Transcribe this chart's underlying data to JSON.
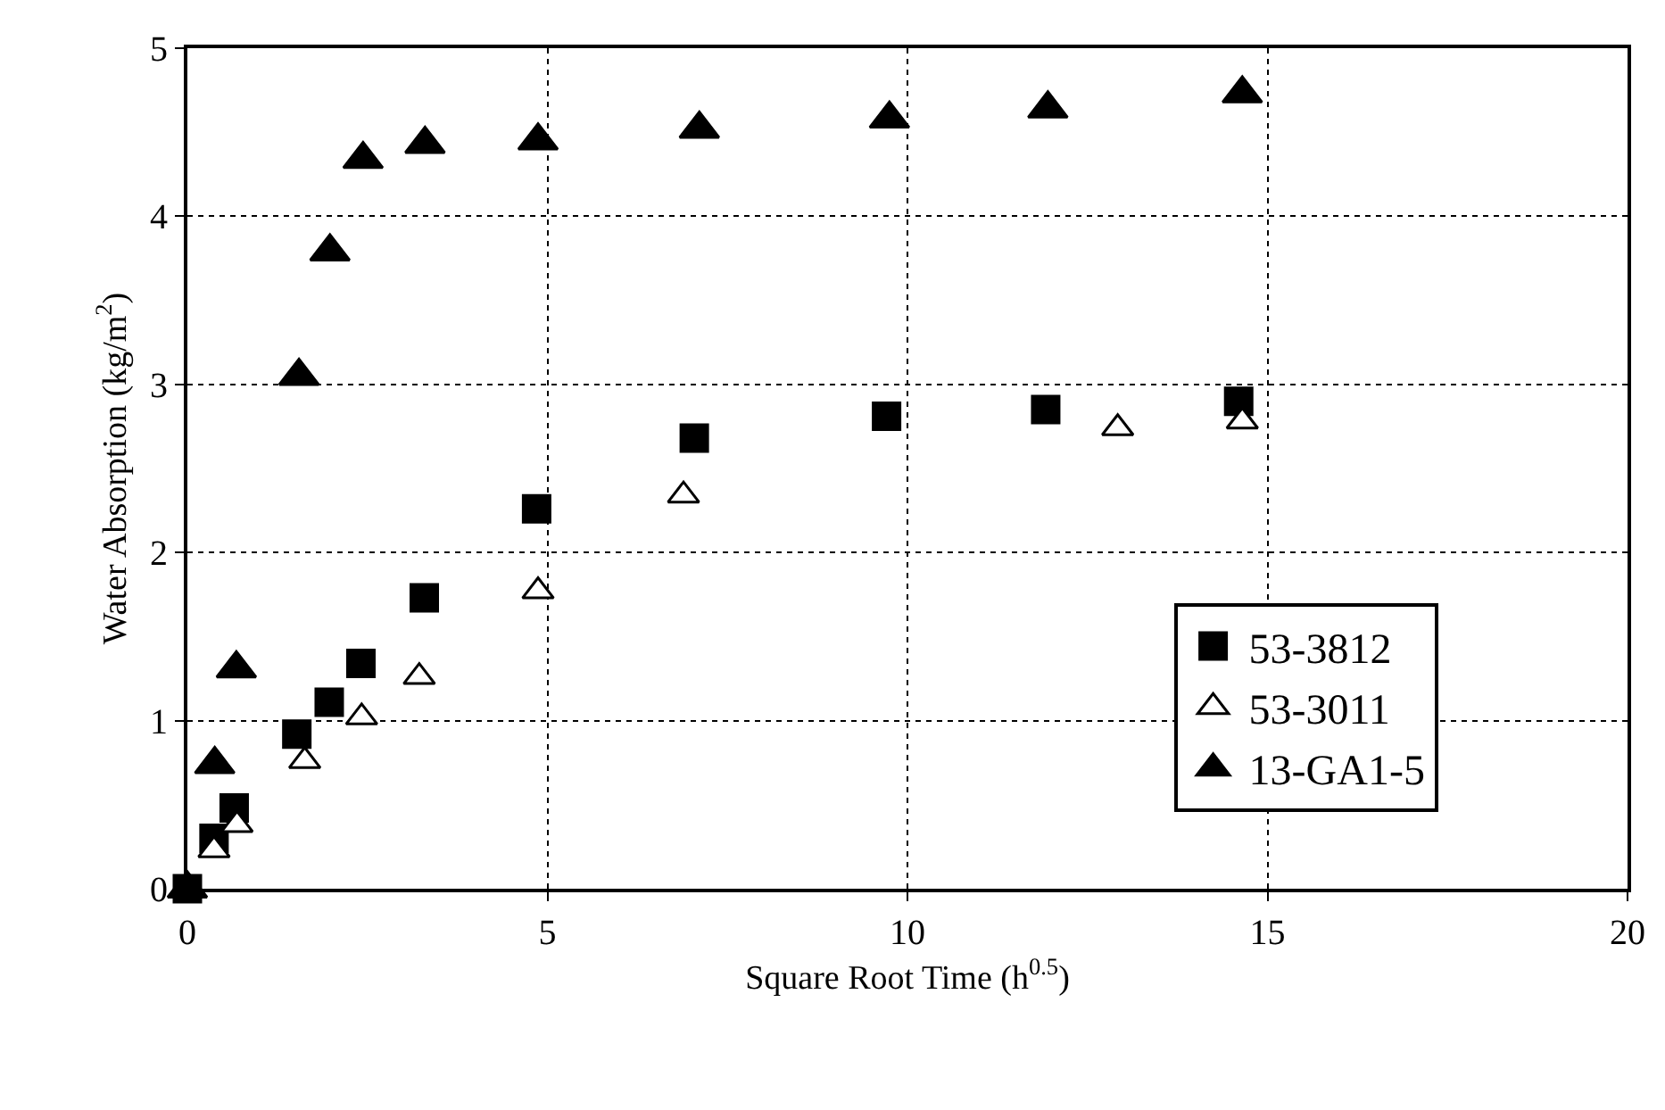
{
  "chart_data": {
    "type": "scatter",
    "xlabel": "Square Root Time (h$^{0.5}$)",
    "ylabel": "Water Absorption (kg/m$^{2}$)",
    "xlim": [
      0,
      20
    ],
    "ylim": [
      0,
      5
    ],
    "xticks": [
      0,
      5,
      10,
      15,
      20
    ],
    "yticks": [
      0,
      1,
      2,
      3,
      4,
      5
    ],
    "grid": true,
    "legend": "bottom right",
    "series": [
      {
        "name": "53-3812",
        "color": "#000000",
        "marker": "square",
        "x": [
          0,
          0.37,
          0.65,
          1.52,
          1.97,
          2.41,
          3.29,
          4.85,
          7.04,
          9.71,
          11.92,
          14.6
        ],
        "values": [
          0,
          0.3,
          0.48,
          0.92,
          1.11,
          1.34,
          1.73,
          2.26,
          2.68,
          2.81,
          2.85,
          2.9
        ]
      },
      {
        "name": "53-3011",
        "color": "#ffffff",
        "marker": "triangle",
        "x": [
          0.37,
          0.69,
          1.63,
          2.42,
          3.22,
          4.87,
          6.89,
          12.92,
          14.65
        ],
        "values": [
          0.23,
          0.38,
          0.76,
          1.02,
          1.26,
          1.77,
          2.34,
          2.74,
          2.78
        ]
      },
      {
        "name": "13-GA1-5",
        "color": "#000000",
        "marker": "triangle",
        "x": [
          0,
          0.38,
          0.68,
          1.55,
          1.98,
          2.44,
          3.3,
          4.87,
          7.11,
          9.75,
          11.95,
          14.65
        ],
        "values": [
          0,
          0.74,
          1.31,
          3.05,
          3.79,
          4.34,
          4.43,
          4.45,
          4.52,
          4.58,
          4.64,
          4.73
        ]
      }
    ]
  }
}
